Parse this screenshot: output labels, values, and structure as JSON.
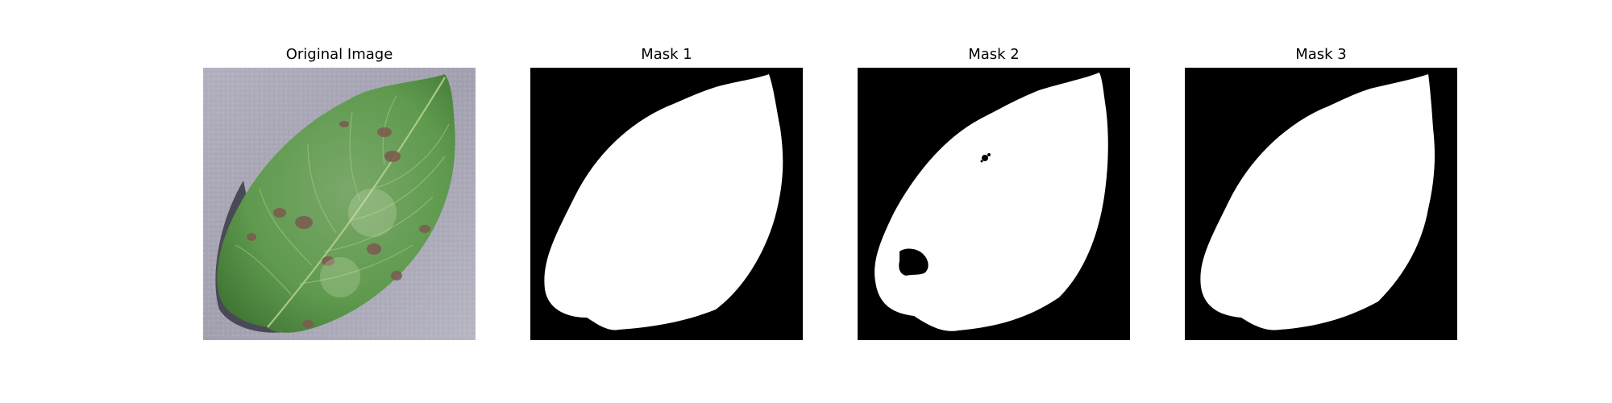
{
  "figure": {
    "panels": [
      {
        "title": "Original Image",
        "kind": "photo"
      },
      {
        "title": "Mask 1",
        "kind": "mask"
      },
      {
        "title": "Mask 2",
        "kind": "mask"
      },
      {
        "title": "Mask 3",
        "kind": "mask"
      }
    ]
  },
  "colors": {
    "figure_background": "#ffffff",
    "mask_background": "#000000",
    "mask_foreground": "#ffffff",
    "leaf_green": "#5f9a4e",
    "leaf_dark_green": "#3f7433",
    "lesion_brown": "#7b5a4f",
    "surface_gray": "#a8a6b5",
    "shadow": "#3a3a46"
  }
}
